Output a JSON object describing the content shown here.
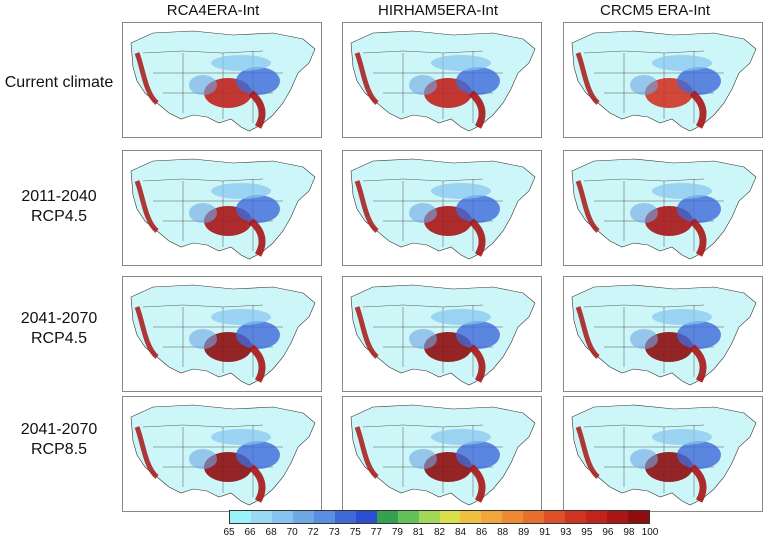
{
  "columns": [
    "RCA4ERA-Int",
    "HIRHAM5ERA-Int",
    "CRCM5 ERA-Int"
  ],
  "rows": [
    {
      "line1": "Current climate",
      "line2": ""
    },
    {
      "line1": "2011-2040",
      "line2": "RCP4.5"
    },
    {
      "line1": "2041-2070",
      "line2": "RCP4.5"
    },
    {
      "line1": "2041-2070",
      "line2": "RCP8.5"
    }
  ],
  "colorbar": {
    "ticks": [
      "65",
      "66",
      "68",
      "70",
      "72",
      "73",
      "75",
      "77",
      "79",
      "81",
      "82",
      "84",
      "86",
      "88",
      "89",
      "91",
      "93",
      "95",
      "96",
      "98",
      "100"
    ],
    "colors": [
      "#9af3f6",
      "#9ad8f4",
      "#86c4ef",
      "#70a8e6",
      "#5b8ee0",
      "#3f6ad8",
      "#2b4fd0",
      "#36a050",
      "#66c05a",
      "#a4d65a",
      "#d8e04a",
      "#f0c040",
      "#f2a53a",
      "#ee8a34",
      "#e8702e",
      "#dd5028",
      "#cf3522",
      "#c0241c",
      "#a81616",
      "#8e0e10"
    ]
  },
  "colors": {
    "ocean": "#ffffff",
    "land_base": "#cdf6f8",
    "border": "#333333"
  }
}
